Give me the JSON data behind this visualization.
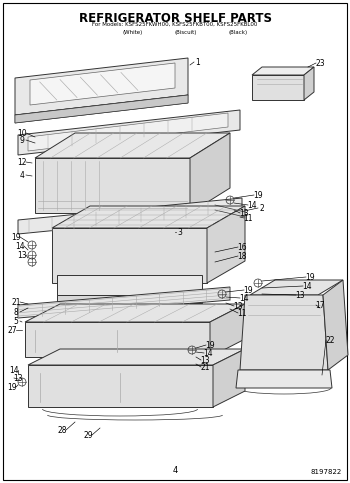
{
  "title_line1": "REFRIGERATOR SHELF PARTS",
  "title_line2": "For Models: KSFS25FKWH00, KSFS25FKBT00, KSFS25FKBL00",
  "title_line3_left": "(White)",
  "title_line3_mid": "(Biscuit)",
  "title_line3_right": "(Black)",
  "page_number": "4",
  "doc_number": "8197822",
  "bg_color": "#ffffff",
  "border_color": "#000000",
  "text_color": "#000000",
  "fig_width": 3.5,
  "fig_height": 4.83,
  "dpi": 100
}
